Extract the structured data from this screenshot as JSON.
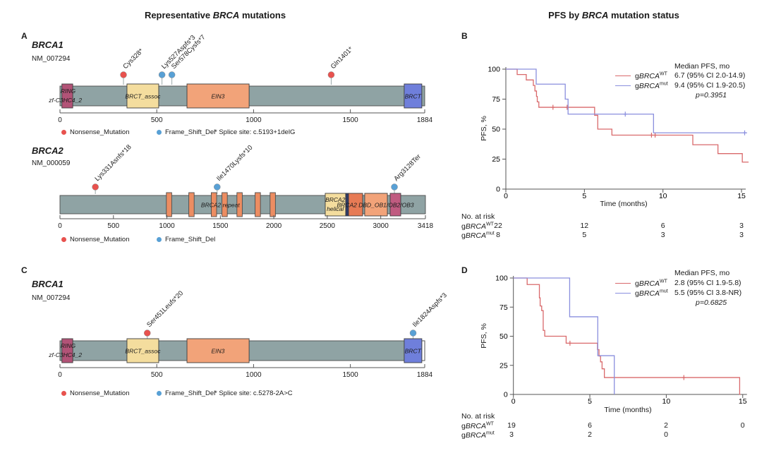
{
  "titles": {
    "left": {
      "pre": "Representative ",
      "gene": "BRCA",
      "post": " mutations"
    },
    "right": {
      "pre": "PFS by ",
      "gene": "BRCA",
      "post": " mutation status"
    }
  },
  "panel_letters": [
    "A",
    "B",
    "C",
    "D"
  ],
  "colors": {
    "nonsense": "#e8524e",
    "frameshift": "#58a0d5",
    "bar": "#8fa3a4",
    "bar_stroke": "#4d4d4d",
    "stem": "#9aa9aa",
    "axis": "#555555",
    "km_wt": "#d9696b",
    "km_mut": "#8a8fde",
    "navy": "#2e3a66",
    "repeat": "#ec8d62"
  },
  "chart_data": [
    {
      "type": "lollipop",
      "panel": "A",
      "gene": "BRCA1",
      "transcript": "NM_007294",
      "length": 1884,
      "axis_ticks": [
        0,
        500,
        1000,
        1500,
        1884
      ],
      "mutations": [
        {
          "label": "Cys328*",
          "pos": 328,
          "kind": "nonsense"
        },
        {
          "label": "Lys527Aspfs*3",
          "pos": 527,
          "kind": "frameshift"
        },
        {
          "label": "Ser578Cysfs*7",
          "pos": 578,
          "kind": "frameshift"
        },
        {
          "label": "Gln1401*",
          "pos": 1401,
          "kind": "nonsense"
        }
      ],
      "domains": [
        {
          "start": 10,
          "end": 66,
          "color": "#b25377"
        },
        {
          "start": 346,
          "end": 510,
          "color": "#f4dd9e"
        },
        {
          "start": 656,
          "end": 977,
          "color": "#f2a379"
        },
        {
          "start": 1778,
          "end": 1869,
          "color": "#6f7fdb"
        }
      ],
      "overlay_labels": [
        {
          "text": "RING",
          "aa": 42,
          "band": "upper"
        },
        {
          "text": "zf-C3HC4_2",
          "aa": 28,
          "band": "lower"
        },
        {
          "text": "BRCT_assoc",
          "aa": 428,
          "band": "middle"
        },
        {
          "text": "EIN3",
          "aa": 816,
          "band": "middle"
        },
        {
          "text": "BRCT",
          "aa": 1823,
          "band": "middle"
        }
      ],
      "legend": [
        {
          "label": "Nonsense_Mutation",
          "kind": "nonsense"
        },
        {
          "label": "Frame_Shift_Del",
          "kind": "frameshift"
        }
      ],
      "splice_note": "* Splice site: c.5193+1delG"
    },
    {
      "type": "lollipop",
      "panel": "A",
      "gene": "BRCA2",
      "transcript": "NM_000059",
      "length": 3418,
      "axis_ticks": [
        0,
        500,
        1000,
        1500,
        2000,
        2500,
        3000,
        3418
      ],
      "mutations": [
        {
          "label": "Lys331Asnfs*18",
          "pos": 331,
          "kind": "nonsense"
        },
        {
          "label": "Ile1470Lysfs*10",
          "pos": 1470,
          "kind": "frameshift"
        },
        {
          "label": "Arg3128Ter",
          "pos": 3128,
          "kind": "frameshift"
        }
      ],
      "domains": [
        {
          "start": 2481,
          "end": 2672,
          "color": "#f4dd9e"
        },
        {
          "start": 2672,
          "end": 2699,
          "color": "#2e3a66"
        },
        {
          "start": 2699,
          "end": 2831,
          "color": "#e77b55"
        },
        {
          "start": 2850,
          "end": 3062,
          "color": "#f2a379"
        },
        {
          "start": 3088,
          "end": 3187,
          "color": "#c05b80"
        }
      ],
      "repeat_marks": {
        "positions": [
          1020,
          1230,
          1440,
          1540,
          1680,
          1850,
          1990
        ],
        "aa_width": 50
      },
      "overlay_labels": [
        {
          "text": "BRCA2 repeat",
          "aa": 1500,
          "band": "middle"
        },
        {
          "text": "BRCA2",
          "aa": 2575,
          "band": "upper"
        },
        {
          "text": "helical",
          "aa": 2575,
          "band": "lower"
        },
        {
          "text": "BRCA2 DBD_OB1/OB2/OB3",
          "aa": 2950,
          "band": "middle"
        }
      ],
      "legend": [
        {
          "label": "Nonsense_Mutation",
          "kind": "nonsense"
        },
        {
          "label": "Frame_Shift_Del",
          "kind": "frameshift"
        }
      ],
      "splice_note": ""
    },
    {
      "type": "lollipop",
      "panel": "C",
      "gene": "BRCA1",
      "transcript": "NM_007294",
      "length": 1884,
      "axis_ticks": [
        0,
        500,
        1000,
        1500,
        1884
      ],
      "mutations": [
        {
          "label": "Ser451Leufs*20",
          "pos": 451,
          "kind": "nonsense"
        },
        {
          "label": "Ile1824Aspfs*3",
          "pos": 1824,
          "kind": "frameshift"
        }
      ],
      "domains": [
        {
          "start": 10,
          "end": 66,
          "color": "#b25377"
        },
        {
          "start": 346,
          "end": 510,
          "color": "#f4dd9e"
        },
        {
          "start": 656,
          "end": 977,
          "color": "#f2a379"
        },
        {
          "start": 1778,
          "end": 1869,
          "color": "#6f7fdb"
        }
      ],
      "tail": {
        "start": 1869,
        "end": 1884,
        "color": "#ffffff"
      },
      "overlay_labels": [
        {
          "text": "RING",
          "aa": 42,
          "band": "upper"
        },
        {
          "text": "zf-C3HC4_2",
          "aa": 28,
          "band": "lower"
        },
        {
          "text": "BRCT_assoc",
          "aa": 428,
          "band": "middle"
        },
        {
          "text": "EIN3",
          "aa": 816,
          "band": "middle"
        },
        {
          "text": "BRCT",
          "aa": 1823,
          "band": "middle"
        }
      ],
      "legend": [
        {
          "label": "Nonsense_Mutation",
          "kind": "nonsense"
        },
        {
          "label": "Frame_Shift_Del",
          "kind": "frameshift"
        }
      ],
      "splice_note": "* Splice site: c.5278-2A>C"
    },
    {
      "type": "line",
      "panel": "B",
      "title": "PFS by BRCA mutation status",
      "x_label": "Time (months)",
      "y_label": "PFS, %",
      "x_ticks": [
        0,
        5,
        10,
        15
      ],
      "y_ticks": [
        0,
        25,
        50,
        75,
        100
      ],
      "legend": {
        "header": "Median PFS, mo",
        "entries": [
          {
            "prefix": "g",
            "gene": "BRCA",
            "sup": "WT",
            "series": "wt",
            "text": "6.7 (95% CI 2.0-14.9)"
          },
          {
            "prefix": "g",
            "gene": "BRCA",
            "sup": "mut",
            "series": "mut",
            "text": "9.4 (95% CI 1.9-20.5)"
          }
        ],
        "p_value": "p=0.3951"
      },
      "series": [
        {
          "id": "wt",
          "color_key": "km_wt",
          "steps": [
            [
              0,
              100
            ],
            [
              0.72,
              95.5
            ],
            [
              1.3,
              91
            ],
            [
              1.75,
              86.4
            ],
            [
              1.85,
              81.8
            ],
            [
              1.95,
              77.3
            ],
            [
              2.0,
              72.7
            ],
            [
              2.1,
              68.2
            ],
            [
              5.65,
              61.5
            ],
            [
              5.85,
              50
            ],
            [
              6.75,
              45
            ],
            [
              11.9,
              37
            ],
            [
              13.5,
              29.6
            ],
            [
              15.05,
              22.5
            ]
          ],
          "end": 15.45,
          "censors": [
            [
              3.0,
              68.2
            ],
            [
              3.9,
              68.2
            ],
            [
              9.27,
              45
            ],
            [
              9.5,
              45
            ]
          ]
        },
        {
          "id": "mut",
          "color_key": "km_mut",
          "steps": [
            [
              0,
              100
            ],
            [
              1.93,
              87.5
            ],
            [
              3.78,
              75
            ],
            [
              3.96,
              62.5
            ],
            [
              9.4,
              46.9
            ]
          ],
          "end": 15.35,
          "censors": [
            [
              7.6,
              62.5
            ],
            [
              15.2,
              46.9
            ]
          ]
        }
      ],
      "risk_table": {
        "title": "No. at risk",
        "rows": [
          {
            "prefix": "g",
            "gene": "BRCA",
            "sup": "WT",
            "values": [
              "22",
              "12",
              "6",
              "3"
            ]
          },
          {
            "prefix": "g",
            "gene": "BRCA",
            "sup": "mut",
            "values": [
              "8",
              "5",
              "3",
              "3"
            ]
          }
        ]
      }
    },
    {
      "type": "line",
      "panel": "D",
      "title": "",
      "x_label": "Time (months)",
      "y_label": "PFS, %",
      "x_ticks": [
        0,
        5,
        10,
        15
      ],
      "y_ticks": [
        0,
        25,
        50,
        75,
        100
      ],
      "legend": {
        "header": "Median PFS, mo",
        "entries": [
          {
            "prefix": "g",
            "gene": "BRCA",
            "sup": "WT",
            "series": "wt",
            "text": "2.8 (95% CI 1.9-5.8)"
          },
          {
            "prefix": "g",
            "gene": "BRCA",
            "sup": "mut",
            "series": "mut",
            "text": "5.5 (95% CI 3.8-NR)"
          }
        ],
        "p_value": "p=0.6825"
      },
      "series": [
        {
          "id": "wt",
          "color_key": "km_wt",
          "steps": [
            [
              0,
              100
            ],
            [
              0.9,
              94.4
            ],
            [
              1.7,
              83
            ],
            [
              1.75,
              76
            ],
            [
              1.85,
              72
            ],
            [
              1.95,
              55
            ],
            [
              2.05,
              50
            ],
            [
              3.45,
              44
            ],
            [
              5.5,
              38.5
            ],
            [
              5.6,
              33
            ],
            [
              5.7,
              28
            ],
            [
              5.8,
              22
            ],
            [
              5.95,
              14.5
            ],
            [
              14.8,
              0
            ]
          ],
          "end": 14.85,
          "censors": [
            [
              3.7,
              44
            ],
            [
              11.15,
              14.5
            ]
          ]
        },
        {
          "id": "mut",
          "color_key": "km_mut",
          "steps": [
            [
              0,
              100
            ],
            [
              3.68,
              66.7
            ],
            [
              5.52,
              33.3
            ],
            [
              6.6,
              0
            ]
          ],
          "end": 6.6,
          "censors": []
        }
      ],
      "risk_table": {
        "title": "No. at risk",
        "rows": [
          {
            "prefix": "g",
            "gene": "BRCA",
            "sup": "WT",
            "values": [
              "19",
              "6",
              "2",
              "0"
            ]
          },
          {
            "prefix": "g",
            "gene": "BRCA",
            "sup": "mut",
            "values": [
              "3",
              "2",
              "0"
            ]
          }
        ]
      }
    }
  ]
}
